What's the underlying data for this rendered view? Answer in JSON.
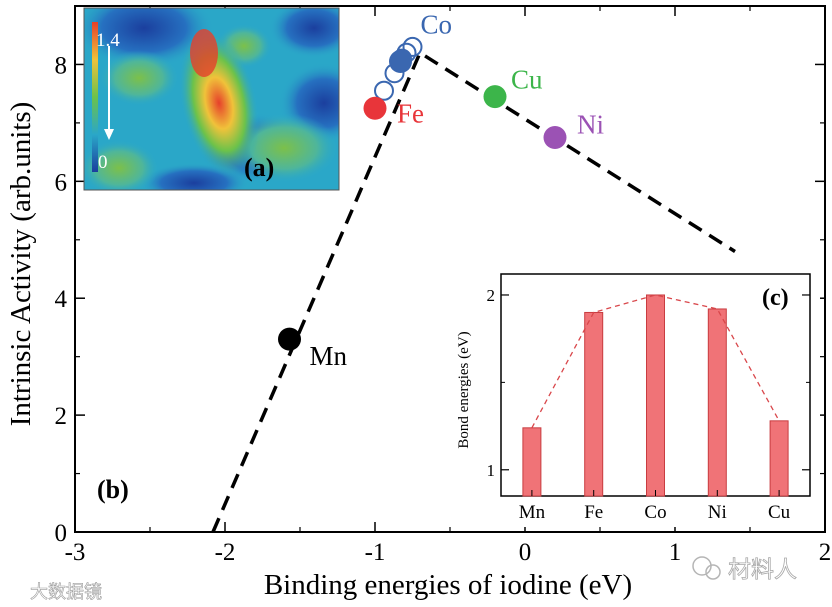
{
  "chart_data": [
    {
      "panel": "(b)",
      "type": "scatter",
      "xlabel": "Binding energies of iodine (eV)",
      "ylabel": "Intrinsic Activity (arb.units)",
      "xlim": [
        -3,
        2
      ],
      "ylim": [
        0,
        9
      ],
      "xticks": [
        "-3",
        "-2",
        "-1",
        "0",
        "1",
        "2"
      ],
      "yticks": [
        "0",
        "2",
        "4",
        "6",
        "8"
      ],
      "series": [
        {
          "name": "metals",
          "points": [
            {
              "label": "Mn",
              "x": -1.57,
              "y": 3.3,
              "color": "#000000"
            },
            {
              "label": "Fe",
              "x": -1.0,
              "y": 7.25,
              "color": "#e8353a"
            },
            {
              "label": "Co",
              "x": -0.83,
              "y": 8.05,
              "color": "#3a67b0"
            },
            {
              "label": "Cu",
              "x": -0.2,
              "y": 7.45,
              "color": "#3cb54a"
            },
            {
              "label": "Ni",
              "x": 0.2,
              "y": 6.75,
              "color": "#9b52b4"
            }
          ]
        },
        {
          "name": "Co cluster (open markers)",
          "points": [
            {
              "x": -0.94,
              "y": 7.55
            },
            {
              "x": -0.87,
              "y": 7.85
            },
            {
              "x": -0.82,
              "y": 8.1
            },
            {
              "x": -0.79,
              "y": 8.2
            },
            {
              "x": -0.75,
              "y": 8.3
            }
          ]
        },
        {
          "name": "volcano trend (dashed)",
          "line": [
            [
              -2.08,
              0
            ],
            [
              -0.7,
              8.2
            ],
            [
              1.4,
              4.8
            ]
          ]
        }
      ]
    },
    {
      "panel": "(c)",
      "type": "bar",
      "ylabel": "Bond energies (eV)",
      "categories": [
        "Mn",
        "Fe",
        "Co",
        "Ni",
        "Cu"
      ],
      "values": [
        1.24,
        1.9,
        2.0,
        1.92,
        1.28
      ],
      "ylim": [
        0.85,
        2.12
      ],
      "yticks": [
        "1",
        "2"
      ],
      "bar_color": "#f07377"
    },
    {
      "panel": "(a)",
      "type": "heatmap",
      "colorbar_max": "1.4",
      "colorbar_min": "0"
    }
  ],
  "watermarks": {
    "left": "大数据镜",
    "right": "材料人"
  }
}
